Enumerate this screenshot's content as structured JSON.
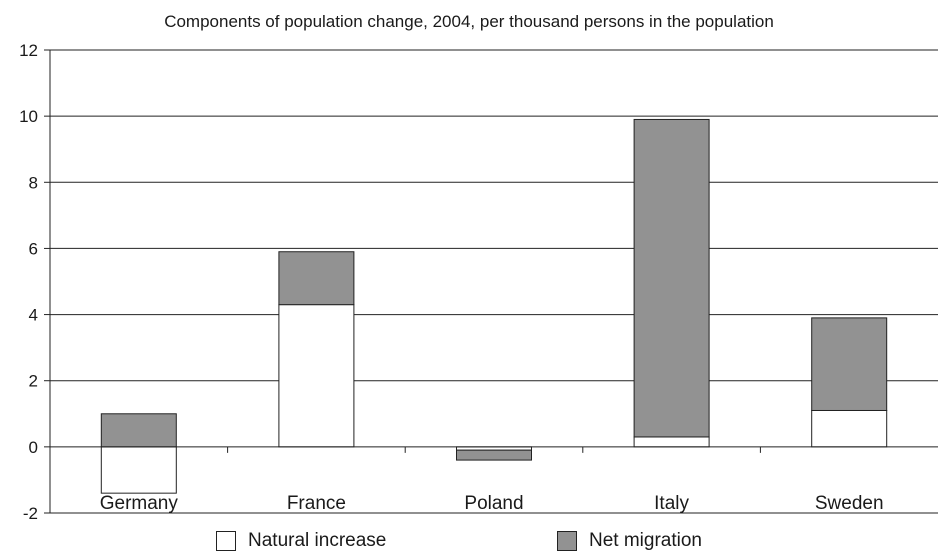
{
  "chart_data": {
    "type": "bar",
    "stacked": true,
    "title": "Components of population change, 2004, per thousand persons in the population",
    "xlabel": "",
    "ylabel": "",
    "categories": [
      "Germany",
      "France",
      "Poland",
      "Italy",
      "Sweden"
    ],
    "series": [
      {
        "name": "Natural increase",
        "values": [
          -1.4,
          4.3,
          -0.1,
          0.3,
          1.1
        ]
      },
      {
        "name": "Net migration",
        "values": [
          1.0,
          1.6,
          -0.3,
          9.6,
          2.8
        ]
      }
    ],
    "ylim": [
      -2,
      12
    ],
    "yticks": [
      "-2",
      "0",
      "2",
      "4",
      "6",
      "8",
      "10",
      "12"
    ],
    "grid": true,
    "legend_position": "bottom",
    "colors": {
      "Natural increase": "#ffffff",
      "Net migration": "#929292"
    }
  }
}
